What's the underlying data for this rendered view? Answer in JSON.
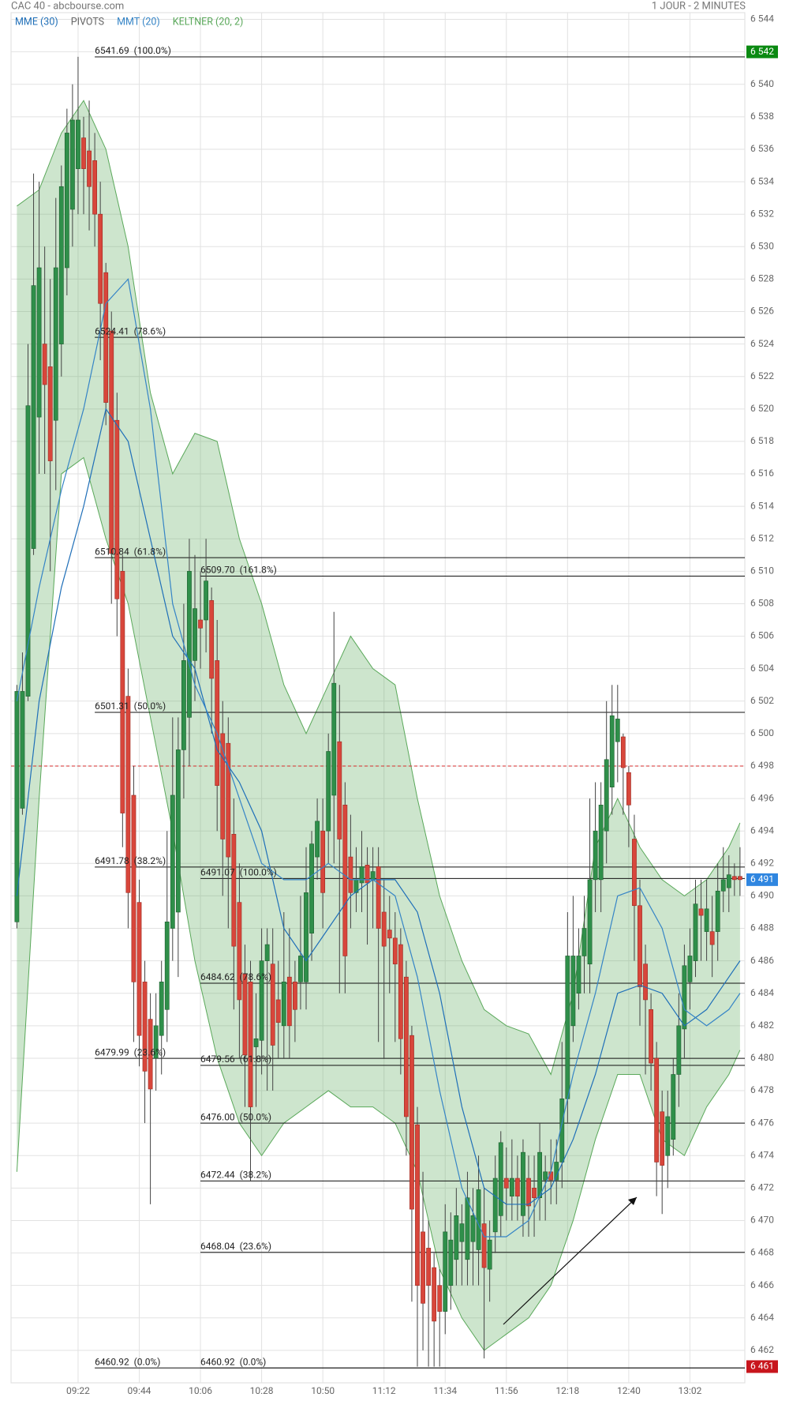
{
  "chart_data": {
    "type": "candlestick",
    "title": "CAC 40 - abcbourse.com",
    "timeframe": "1 JOUR - 2 MINUTES",
    "ylim": [
      6460,
      6545
    ],
    "yticks": [
      {
        "value": 6462,
        "label": "6 462"
      },
      {
        "value": 6464,
        "label": "6 464"
      },
      {
        "value": 6466,
        "label": "6 466"
      },
      {
        "value": 6468,
        "label": "6 468"
      },
      {
        "value": 6470,
        "label": "6 470"
      },
      {
        "value": 6472,
        "label": "6 472"
      },
      {
        "value": 6474,
        "label": "6 474"
      },
      {
        "value": 6476,
        "label": "6 476"
      },
      {
        "value": 6478,
        "label": "6 478"
      },
      {
        "value": 6480,
        "label": "6 480"
      },
      {
        "value": 6482,
        "label": "6 482"
      },
      {
        "value": 6484,
        "label": "6 484"
      },
      {
        "value": 6486,
        "label": "6 486"
      },
      {
        "value": 6488,
        "label": "6 488"
      },
      {
        "value": 6490,
        "label": "6 490"
      },
      {
        "value": 6492,
        "label": "6 492"
      },
      {
        "value": 6494,
        "label": "6 494"
      },
      {
        "value": 6496,
        "label": "6 496"
      },
      {
        "value": 6498,
        "label": "6 498"
      },
      {
        "value": 6500,
        "label": "6 500"
      },
      {
        "value": 6502,
        "label": "6 502"
      },
      {
        "value": 6504,
        "label": "6 504"
      },
      {
        "value": 6506,
        "label": "6 506"
      },
      {
        "value": 6508,
        "label": "6 508"
      },
      {
        "value": 6510,
        "label": "6 510"
      },
      {
        "value": 6512,
        "label": "6 512"
      },
      {
        "value": 6514,
        "label": "6 514"
      },
      {
        "value": 6516,
        "label": "6 516"
      },
      {
        "value": 6518,
        "label": "6 518"
      },
      {
        "value": 6520,
        "label": "6 520"
      },
      {
        "value": 6522,
        "label": "6 522"
      },
      {
        "value": 6524,
        "label": "6 524"
      },
      {
        "value": 6526,
        "label": "6 526"
      },
      {
        "value": 6528,
        "label": "6 528"
      },
      {
        "value": 6530,
        "label": "6 530"
      },
      {
        "value": 6532,
        "label": "6 532"
      },
      {
        "value": 6534,
        "label": "6 534"
      },
      {
        "value": 6536,
        "label": "6 536"
      },
      {
        "value": 6538,
        "label": "6 538"
      },
      {
        "value": 6540,
        "label": "6 540"
      },
      {
        "value": 6542,
        "label": "6 542"
      },
      {
        "value": 6544,
        "label": "6 544"
      }
    ],
    "xticks": [
      {
        "value": 11,
        "label": "09:22"
      },
      {
        "value": 22,
        "label": "09:44"
      },
      {
        "value": 33,
        "label": "10:06"
      },
      {
        "value": 44,
        "label": "10:28"
      },
      {
        "value": 55,
        "label": "10:50"
      },
      {
        "value": 66,
        "label": "11:12"
      },
      {
        "value": 77,
        "label": "11:34"
      },
      {
        "value": 88,
        "label": "11:56"
      },
      {
        "value": 99,
        "label": "12:18"
      },
      {
        "value": 110,
        "label": "12:40"
      },
      {
        "value": 121,
        "label": "13:02"
      }
    ],
    "grid": true,
    "up_color": "#2f8f4a",
    "down_color": "#d8463b",
    "candles": {
      "open": [
        6488.4,
        6495.4,
        6502.3,
        6511.4,
        6519.5,
        6524,
        6522.6,
        6519.3,
        6524,
        6528.7,
        6532.3,
        6534.8,
        6536.7,
        6535.9,
        6535.3,
        6532,
        6528.4,
        6524.8,
        6519.3,
        6510,
        6502.3,
        6496.2,
        6489.6,
        6484.7,
        6482.4,
        6480,
        6481.4,
        6483,
        6488,
        6489,
        6499,
        6501,
        6504.5,
        6507,
        6507,
        6508.2,
        6504.5,
        6500,
        6499.4,
        6493.8,
        6489.6,
        6485.2,
        6484.7,
        6480.7,
        6481.1,
        6486,
        6485.8,
        6483.6,
        6482,
        6485,
        6484.7,
        6484.7,
        6484.7,
        6487.7,
        6492.4,
        6494,
        6494,
        6496.2,
        6499.5,
        6495.6,
        6492.4,
        6490.2,
        6490.8,
        6491.9,
        6491,
        6491.8,
        6489,
        6487.9,
        6487.4,
        6487,
        6485,
        6481.4,
        6475.9,
        6469.3,
        6468.3,
        6467.1,
        6466,
        6464.4,
        6466,
        6467.6,
        6468.7,
        6467.6,
        6468.7,
        6468.2,
        6469.8,
        6467,
        6469.3,
        6470.3,
        6472.6,
        6471.5,
        6472.6,
        6470.3,
        6472.6,
        6472,
        6471.4,
        6472.5,
        6473,
        6472.5,
        6473.6,
        6477.5,
        6482,
        6484,
        6486.3,
        6485.8,
        6491,
        6491,
        6494,
        6496.7,
        6499.5,
        6499.8,
        6497.6,
        6493.5,
        6489.4,
        6485.8,
        6483,
        6480,
        6476.7,
        6474,
        6475,
        6479,
        6481.8,
        6484.7,
        6486,
        6489.2,
        6487.8,
        6487.8,
        6487.8,
        6490.3,
        6490.5,
        6491.2,
        6491.2
      ],
      "high": [
        6503,
        6505,
        6524,
        6534.5,
        6534,
        6530,
        6528,
        6533,
        6535,
        6538.5,
        6540,
        6541.7,
        6538,
        6539,
        6537,
        6534,
        6529,
        6526,
        6521,
        6511,
        6504,
        6498,
        6491,
        6486,
        6484,
        6484,
        6486,
        6494,
        6501,
        6501,
        6508,
        6512,
        6511,
        6510,
        6512,
        6509,
        6507,
        6502,
        6501,
        6496,
        6492,
        6487,
        6486,
        6484,
        6488,
        6488,
        6488,
        6486,
        6489,
        6488,
        6486,
        6490,
        6493,
        6494,
        6496,
        6496,
        6500,
        6507.5,
        6503,
        6497,
        6495,
        6493,
        6494,
        6493,
        6493,
        6493,
        6491,
        6490,
        6489,
        6488,
        6486,
        6482,
        6477,
        6473,
        6470,
        6468,
        6467,
        6471,
        6470.5,
        6472,
        6471,
        6473,
        6472,
        6474,
        6472,
        6470,
        6474,
        6475.5,
        6474.5,
        6475,
        6474,
        6475,
        6474,
        6474,
        6476,
        6474,
        6475,
        6475,
        6481,
        6489,
        6490,
        6488,
        6490,
        6496,
        6497,
        6497,
        6502,
        6503,
        6503,
        6500,
        6498,
        6495,
        6491,
        6487,
        6484,
        6481,
        6478,
        6478,
        6480,
        6484,
        6487,
        6488,
        6491,
        6491,
        6491,
        6490,
        6492,
        6493,
        6492.5,
        6492,
        6493
      ],
      "low": [
        6488,
        6495,
        6502,
        6511,
        6516,
        6516,
        6510,
        6515,
        6522,
        6527,
        6530,
        6532,
        6532,
        6531,
        6530,
        6523,
        6519,
        6508,
        6506,
        6493,
        6488,
        6481,
        6479.5,
        6476,
        6471,
        6478,
        6479,
        6481,
        6486,
        6485,
        6496,
        6498,
        6502,
        6504,
        6505,
        6500,
        6494,
        6490,
        6488,
        6483,
        6480,
        6477,
        6472.4,
        6477,
        6479,
        6478,
        6478,
        6480,
        6480,
        6480,
        6481,
        6483,
        6483,
        6486,
        6491,
        6488,
        6492,
        6492,
        6484,
        6484,
        6488,
        6489,
        6489,
        6487,
        6488,
        6481,
        6480,
        6484,
        6481,
        6479,
        6474,
        6465,
        6461,
        6462,
        6461,
        6461,
        6461,
        6463,
        6464.5,
        6466,
        6466,
        6466,
        6466,
        6466,
        6461.5,
        6465,
        6468,
        6469,
        6470,
        6470,
        6470,
        6469,
        6469,
        6469,
        6470,
        6470,
        6471,
        6471,
        6472,
        6476,
        6481,
        6483,
        6484,
        6484,
        6489,
        6489,
        6492,
        6495,
        6497,
        6495,
        6493,
        6486,
        6482,
        6479,
        6478,
        6471.5,
        6470.4,
        6472,
        6474,
        6477,
        6480,
        6483,
        6485,
        6486,
        6486,
        6485,
        6486,
        6489,
        6489,
        6490,
        6490
      ],
      "close": [
        6502.6,
        6502.6,
        6520.2,
        6527.6,
        6528.7,
        6521.5,
        6516.8,
        6528.7,
        6533.7,
        6537,
        6537.8,
        6537.8,
        6534.8,
        6533.7,
        6532,
        6526.5,
        6520.4,
        6511.1,
        6508.3,
        6495.1,
        6490.2,
        6484.7,
        6481.4,
        6479.2,
        6478.1,
        6482,
        6484.7,
        6488.4,
        6496.2,
        6499,
        6504.5,
        6510,
        6507.7,
        6506.5,
        6509.4,
        6503.4,
        6496.8,
        6493.5,
        6492.4,
        6486.9,
        6483.6,
        6480.2,
        6477,
        6481.2,
        6486,
        6487,
        6480.8,
        6482.2,
        6484.7,
        6482,
        6483,
        6486.3,
        6490.2,
        6493.2,
        6494.6,
        6490.2,
        6498.9,
        6503.1,
        6493.5,
        6486.3,
        6490.2,
        6491,
        6491.8,
        6490.8,
        6491.5,
        6488,
        6486.9,
        6487.4,
        6485.8,
        6481.2,
        6476.4,
        6470.7,
        6466,
        6464.9,
        6466,
        6463.8,
        6464.4,
        6469.3,
        6468.8,
        6470.3,
        6469.8,
        6471.4,
        6470.3,
        6471.9,
        6467.1,
        6468.8,
        6472.6,
        6474.8,
        6472,
        6472.6,
        6471.5,
        6474.2,
        6470.9,
        6471.4,
        6474.2,
        6473,
        6472.5,
        6473.6,
        6477.5,
        6486.3,
        6486.3,
        6486.3,
        6488,
        6491,
        6494,
        6495.6,
        6498.4,
        6501.1,
        6500.9,
        6497.9,
        6495.6,
        6489.4,
        6484.4,
        6483.6,
        6479.7,
        6473.6,
        6473.4,
        6476.4,
        6479,
        6482,
        6485.7,
        6486.3,
        6489.5,
        6488.8,
        6489.2,
        6487,
        6490.3,
        6491,
        6491.3,
        6491,
        6491
      ]
    },
    "overlay_x": [
      0,
      4,
      8,
      12,
      16,
      20,
      24,
      28,
      32,
      36,
      40,
      44,
      48,
      52,
      56,
      60,
      64,
      68,
      72,
      76,
      80,
      84,
      88,
      92,
      96,
      100,
      104,
      108,
      112,
      116,
      120,
      124,
      128,
      130
    ],
    "keltner": {
      "name": "KELTNER (20, 2)",
      "color": "#5aa85a",
      "upper": [
        6532.5,
        6533.5,
        6537,
        6539,
        6536,
        6530,
        6521,
        6516,
        6518.5,
        6518,
        6512,
        6508,
        6503,
        6500,
        6503,
        6506,
        6504,
        6503,
        6496,
        6490,
        6486,
        6483,
        6482,
        6481.5,
        6479,
        6484,
        6493,
        6496,
        6493,
        6491,
        6490,
        6491,
        6493,
        6494.5
      ],
      "lower": [
        6473,
        6496,
        6516,
        6517,
        6512,
        6508,
        6501,
        6494,
        6486,
        6480,
        6476,
        6474,
        6476,
        6477,
        6478,
        6477,
        6477,
        6476,
        6473,
        6467,
        6464,
        6462,
        6463,
        6464,
        6466,
        6470,
        6475,
        6479,
        6479,
        6475,
        6474,
        6477,
        6479,
        6480.5
      ]
    },
    "series": [
      {
        "name": "MME (30)",
        "color": "#1f6fb8",
        "values": [
          6490,
          6502,
          6509,
          6514,
          6520,
          6518,
          6512,
          6506,
          6504,
          6499,
          6497,
          6494,
          6488,
          6486,
          6488,
          6490,
          6491,
          6491,
          6489,
          6484,
          6477,
          6472,
          6471,
          6471,
          6472,
          6475,
          6479,
          6484,
          6484.5,
          6484,
          6482,
          6483,
          6485,
          6486
        ]
      },
      {
        "name": "MMT (20)",
        "color": "#3584c6",
        "values": [
          6502,
          6509,
          6515,
          6520,
          6526.5,
          6528,
          6520,
          6508,
          6503,
          6500,
          6496,
          6492,
          6491,
          6491,
          6492,
          6491,
          6491,
          6490,
          6485,
          6478,
          6472,
          6469,
          6469,
          6470,
          6473,
          6479,
          6484,
          6490,
          6490.5,
          6488,
          6483,
          6482,
          6483,
          6484
        ]
      }
    ],
    "pivots": {
      "name": "PIVOTS",
      "color": "#d62b2b",
      "values": [
        6498
      ]
    },
    "fibonacci": [
      {
        "start": 14,
        "levels": [
          {
            "value": 6541.69,
            "label": "6541.69  (100.0%)"
          },
          {
            "value": 6524.41,
            "label": "6524.41  (78.6%)"
          },
          {
            "value": 6510.84,
            "label": "6510.84  (61.8%)"
          },
          {
            "value": 6501.31,
            "label": "6501.31  (50.0%)"
          },
          {
            "value": 6491.78,
            "label": "6491.78  (38.2%)"
          },
          {
            "value": 6479.99,
            "label": "6479.99  (23.6%)"
          },
          {
            "value": 6460.92,
            "label": "6460.92  (0.0%)"
          }
        ]
      },
      {
        "start": 33,
        "levels": [
          {
            "value": 6509.7,
            "label": "6509.70  (161.8%)"
          },
          {
            "value": 6491.07,
            "label": "6491.07  (100.0%)"
          },
          {
            "value": 6484.62,
            "label": "6484.62  (78.6%)"
          },
          {
            "value": 6479.56,
            "label": "6479.56  (61.8%)"
          },
          {
            "value": 6476.0,
            "label": "6476.00  (50.0%)"
          },
          {
            "value": 6472.44,
            "label": "6472.44  (38.2%)"
          },
          {
            "value": 6468.04,
            "label": "6468.04  (23.6%)"
          },
          {
            "value": 6460.92,
            "label": "6460.92  (0.0%)"
          }
        ]
      }
    ],
    "price_badges": [
      {
        "value": 6542,
        "label": "6 542",
        "color": "#0b8a12"
      },
      {
        "value": 6491,
        "label": "6 491",
        "color": "#2f86e0"
      },
      {
        "value": 6461,
        "label": "6 461",
        "color": "#c8161d"
      }
    ]
  }
}
